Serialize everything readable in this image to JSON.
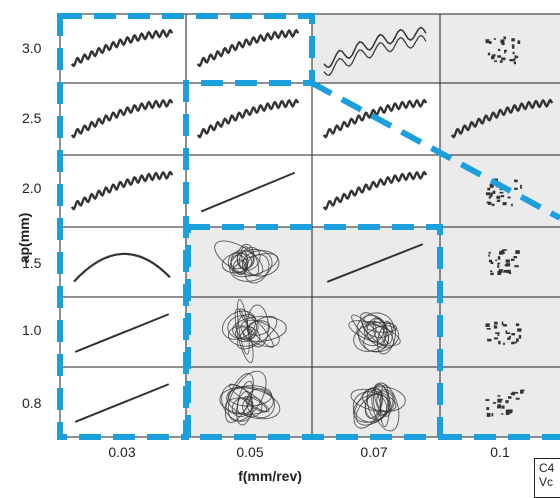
{
  "axes": {
    "y_title": "ap(mm)",
    "x_title": "f(mm/rev)",
    "y_ticks": [
      "3.0",
      "2.5",
      "2.0",
      "1.5",
      "1.0",
      "0.8"
    ],
    "x_ticks": [
      "0.03",
      "0.05",
      "0.07",
      "0.1"
    ]
  },
  "corner_note": "C4\nVc",
  "colors": {
    "dashed_border": "#1aa0dc",
    "grid_line": "#222222",
    "shaded_cell": "#ebebeb",
    "chip": "#333333"
  },
  "chip_grid": [
    [
      "long-helical",
      "long-helical",
      "short-helical",
      "fragmented"
    ],
    [
      "long-helical",
      "long-helical",
      "long-helical",
      "long-helical"
    ],
    [
      "long-helical",
      "straight-ribbon",
      "long-helical",
      "fragmented"
    ],
    [
      "arc-ribbon",
      "snarled",
      "straight-ribbon",
      "fragmented"
    ],
    [
      "straight-ribbon",
      "snarled",
      "snarled",
      "fragmented"
    ],
    [
      "straight-ribbon",
      "snarled",
      "snarled",
      "fragmented"
    ]
  ],
  "shaded_cells": [
    [
      0,
      2
    ],
    [
      0,
      3
    ],
    [
      1,
      3
    ],
    [
      2,
      3
    ],
    [
      3,
      1
    ],
    [
      3,
      2
    ],
    [
      3,
      3
    ],
    [
      4,
      1
    ],
    [
      4,
      2
    ],
    [
      4,
      3
    ],
    [
      5,
      1
    ],
    [
      5,
      2
    ],
    [
      5,
      3
    ]
  ]
}
